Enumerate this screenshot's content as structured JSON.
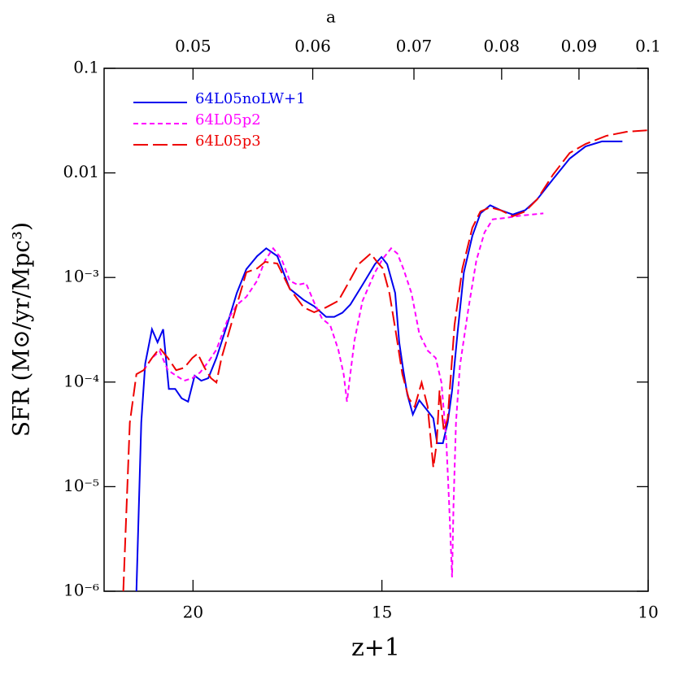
{
  "chart_data": {
    "type": "line",
    "xlabel": "z+1",
    "ylabel": "SFR (M⊙/yr/Mpc³)",
    "top_xlabel": "a",
    "xscale": "log",
    "yscale": "log",
    "xlim": [
      22.9,
      10
    ],
    "ylim": [
      1e-06,
      0.1
    ],
    "xticks": [
      20,
      15,
      10
    ],
    "top_xticks": [
      0.05,
      0.06,
      0.07,
      0.08,
      0.09,
      0.1
    ],
    "yticks": [
      0.1,
      0.01,
      {
        "value": 0.001,
        "label": "10⁻³"
      },
      {
        "value": 0.0001,
        "label": "10⁻⁴"
      },
      {
        "value": 1e-05,
        "label": "10⁻⁵"
      },
      {
        "value": 1e-06,
        "label": "10⁻⁶"
      }
    ],
    "legend": "upper left",
    "series": [
      {
        "name": "64L05noLW+1",
        "color": "#0000ee",
        "x": [
          21.8,
          21.64,
          21.51,
          21.29,
          21.11,
          20.93,
          20.75,
          20.55,
          20.35,
          20.15,
          19.95,
          19.75,
          19.54,
          19.3,
          18.99,
          18.71,
          18.44,
          18.14,
          17.89,
          17.59,
          17.26,
          16.9,
          16.63,
          16.33,
          16.13,
          15.93,
          15.74,
          15.45,
          15.16,
          15.01,
          14.88,
          14.7,
          14.61,
          14.52,
          14.43,
          14.31,
          14.17,
          13.99,
          13.87,
          13.79,
          13.67,
          13.57,
          13.48,
          13.37,
          13.24,
          13.07,
          12.91,
          12.72,
          12.52,
          12.29,
          12.06,
          11.84,
          11.56,
          11.27,
          11.0,
          10.73,
          10.4
        ],
        "values": [
          1e-06,
          4.1e-05,
          0.00015,
          0.00032,
          0.00024,
          0.00032,
          8.6e-05,
          8.6e-05,
          7e-05,
          6.5e-05,
          0.000115,
          0.000103,
          0.000109,
          0.00017,
          0.00035,
          0.00071,
          0.0012,
          0.0016,
          0.0019,
          0.0016,
          0.00078,
          0.00061,
          0.00053,
          0.00042,
          0.00042,
          0.00046,
          0.00055,
          0.00085,
          0.00134,
          0.00157,
          0.00134,
          0.00071,
          0.00024,
          0.00013,
          7.6e-05,
          4.9e-05,
          6.7e-05,
          5.3e-05,
          4.5e-05,
          2.6e-05,
          2.6e-05,
          4.1e-05,
          8.3e-05,
          0.00029,
          0.00112,
          0.0025,
          0.0041,
          0.0049,
          0.0044,
          0.004,
          0.0044,
          0.0056,
          0.0087,
          0.0137,
          0.0179,
          0.02,
          0.02
        ]
      },
      {
        "name": "64L05p2",
        "color": "#ff00ff",
        "dash": [
          6,
          4
        ],
        "x": [
          21.56,
          21.29,
          21.04,
          20.78,
          20.52,
          20.27,
          20.02,
          19.78,
          19.54,
          19.3,
          18.99,
          18.71,
          18.44,
          18.14,
          17.92,
          17.7,
          17.48,
          17.26,
          17.05,
          16.84,
          16.63,
          16.43,
          16.23,
          16.03,
          15.9,
          15.82,
          15.74,
          15.64,
          15.45,
          15.16,
          14.98,
          14.79,
          14.65,
          14.52,
          14.34,
          14.17,
          13.99,
          13.82,
          13.7,
          13.6,
          13.54,
          13.48,
          13.45,
          13.4,
          13.32,
          13.15,
          12.99,
          12.83,
          12.67,
          12.45,
          12.14,
          11.73
        ],
        "values": [
          0.00013,
          0.00017,
          0.000197,
          0.00013,
          0.000115,
          0.000103,
          0.000109,
          0.000124,
          0.000156,
          0.000204,
          0.000382,
          0.000546,
          0.000653,
          0.00093,
          0.00146,
          0.0019,
          0.00151,
          0.00093,
          0.00085,
          0.000885,
          0.000576,
          0.000403,
          0.00035,
          0.000204,
          0.000119,
          6.5e-05,
          0.000119,
          0.00025,
          0.000597,
          0.00112,
          0.00151,
          0.0019,
          0.00169,
          0.00122,
          0.00071,
          0.00029,
          0.0002,
          0.00017,
          9.9e-05,
          2.8e-05,
          6.8e-06,
          1.36e-06,
          6.8e-06,
          4.1e-05,
          0.000143,
          0.0005,
          0.00146,
          0.0027,
          0.0036,
          0.0037,
          0.0039,
          0.0041
        ]
      },
      {
        "name": "64L05p3",
        "color": "#ee0000",
        "dash": [
          18,
          6
        ],
        "x": [
          22.24,
          22.02,
          21.8,
          21.56,
          21.29,
          21.04,
          20.78,
          20.52,
          20.27,
          20.02,
          19.86,
          19.65,
          19.46,
          19.3,
          19.15,
          18.71,
          18.44,
          18.14,
          17.92,
          17.59,
          17.26,
          16.9,
          16.63,
          16.33,
          16.03,
          15.83,
          15.54,
          15.26,
          15.11,
          14.98,
          14.83,
          14.68,
          14.54,
          14.4,
          14.27,
          14.12,
          13.99,
          13.87,
          13.8,
          13.74,
          13.65,
          13.57,
          13.43,
          13.27,
          13.07,
          12.91,
          12.72,
          12.52,
          12.29,
          12.06,
          11.84,
          11.56,
          11.27,
          11.0,
          10.66,
          10.34,
          10.0
        ],
        "values": [
          1e-06,
          4.1e-05,
          0.000119,
          0.00013,
          0.00017,
          0.000211,
          0.00017,
          0.00013,
          0.000137,
          0.00017,
          0.000187,
          0.000137,
          0.000109,
          9.9e-05,
          0.00017,
          0.000546,
          0.00112,
          0.00122,
          0.00141,
          0.00136,
          0.00078,
          0.000518,
          0.000465,
          0.000518,
          0.000597,
          0.000824,
          0.00134,
          0.00169,
          0.00141,
          0.00122,
          0.00071,
          0.00029,
          0.000119,
          7e-05,
          5.8e-05,
          9.9e-05,
          5.8e-05,
          1.52e-05,
          2.6e-05,
          8.3e-05,
          3.4e-05,
          4.5e-05,
          0.00035,
          0.00122,
          0.00299,
          0.00428,
          0.00468,
          0.0044,
          0.00385,
          0.00428,
          0.0056,
          0.0096,
          0.0155,
          0.0189,
          0.0226,
          0.0247,
          0.0256
        ]
      }
    ]
  }
}
